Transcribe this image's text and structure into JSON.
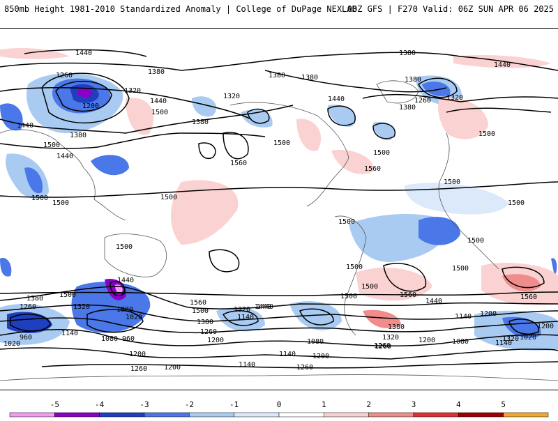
{
  "header": {
    "left_title": "850mb Height 1981-2010 Standardized Anomaly | College of DuPage NEXLAB",
    "right_title": "00Z GFS | F270 Valid: 06Z SUN APR 06 2025"
  },
  "colorbar": {
    "ticks": [
      "-5",
      "-4",
      "-3",
      "-2",
      "-1",
      "0",
      "1",
      "2",
      "3",
      "4",
      "5"
    ],
    "colors": [
      "#f29bf2",
      "#8b00c8",
      "#1f3fbf",
      "#4a78e8",
      "#a9cbf2",
      "#dbe9fb",
      "#ffffff",
      "#fbd2d2",
      "#f08c8c",
      "#e03030",
      "#a00000",
      "#f2a830"
    ]
  },
  "map": {
    "contour_labels": [
      "1440",
      "1380",
      "1260",
      "1380",
      "1320",
      "1200",
      "1440",
      "1500",
      "1380",
      "1500",
      "1440",
      "1440",
      "1500",
      "1500",
      "1380",
      "1320",
      "1380",
      "1500",
      "1440",
      "1500",
      "1560",
      "1380",
      "1440",
      "1380",
      "1260",
      "1320",
      "1380",
      "1500",
      "1560",
      "1500",
      "1500",
      "1500",
      "1500",
      "1500",
      "1500",
      "1500",
      "1500",
      "1500",
      "1500",
      "1440",
      "1440",
      "1500",
      "1380",
      "1320",
      "1260",
      "1560",
      "1500",
      "1380",
      "1260",
      "1200",
      "1320",
      "1440",
      "1140",
      "1080",
      "1020",
      "960",
      "1080",
      "960",
      "1020",
      "1140",
      "1200",
      "1260",
      "1200",
      "1140",
      "1260",
      "1140",
      "1200",
      "1260",
      "1200",
      "1080",
      "1560",
      "1440",
      "1380",
      "1320",
      "1260",
      "1200",
      "1140",
      "1080",
      "1020",
      "1140",
      "1200",
      "1560",
      "1320"
    ]
  }
}
